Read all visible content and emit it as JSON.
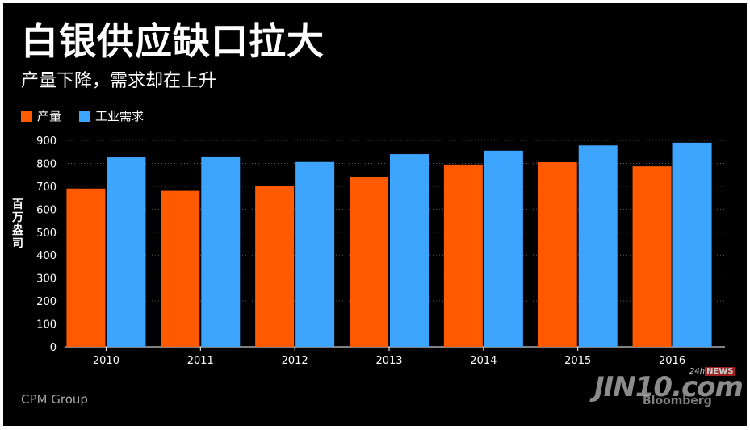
{
  "chart_data": {
    "type": "bar",
    "title": "白银供应缺口拉大",
    "subtitle": "产量下降，需求却在上升",
    "ylabel": "百万盎司",
    "xlabel": "",
    "categories": [
      "2010",
      "2011",
      "2012",
      "2013",
      "2014",
      "2015",
      "2016"
    ],
    "series": [
      {
        "name": "产量",
        "color": "#ff5a00",
        "values": [
          690,
          680,
          700,
          740,
          795,
          805,
          787
        ]
      },
      {
        "name": "工业需求",
        "color": "#3ea5ff",
        "values": [
          826,
          830,
          806,
          840,
          855,
          878,
          890
        ]
      }
    ],
    "ylim": [
      0,
      900
    ],
    "yticks": [
      "0",
      "100",
      "200",
      "300",
      "400",
      "500",
      "600",
      "700",
      "800",
      "900"
    ],
    "grid": true,
    "legend": "top-left",
    "source": "CPM Group"
  },
  "watermark": {
    "main": "JIN10.com",
    "small_prefix": "24h",
    "small_badge": "NEWS",
    "sub": "Bloomberg"
  }
}
